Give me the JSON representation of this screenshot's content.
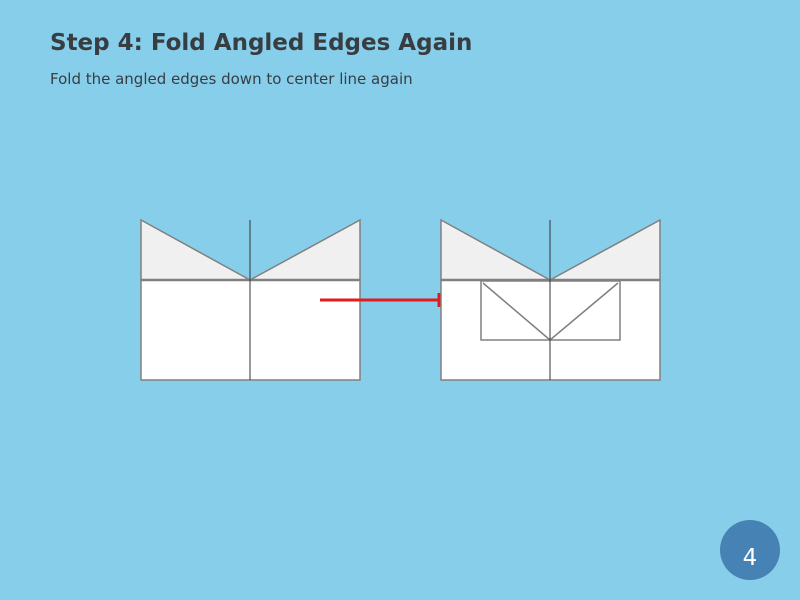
{
  "slide": {
    "title": "Step 4: Fold Angled Edges Again",
    "instruction": "Fold the angled edges down to center line again",
    "step_number": "4"
  },
  "colors": {
    "background": "#87ceeb",
    "text": "#383d41",
    "paper": "#ffffff",
    "folded_flap": "#f0f0f0",
    "outline": "#808080",
    "arrow": "#e31b1b",
    "badge": "#4682b4"
  }
}
